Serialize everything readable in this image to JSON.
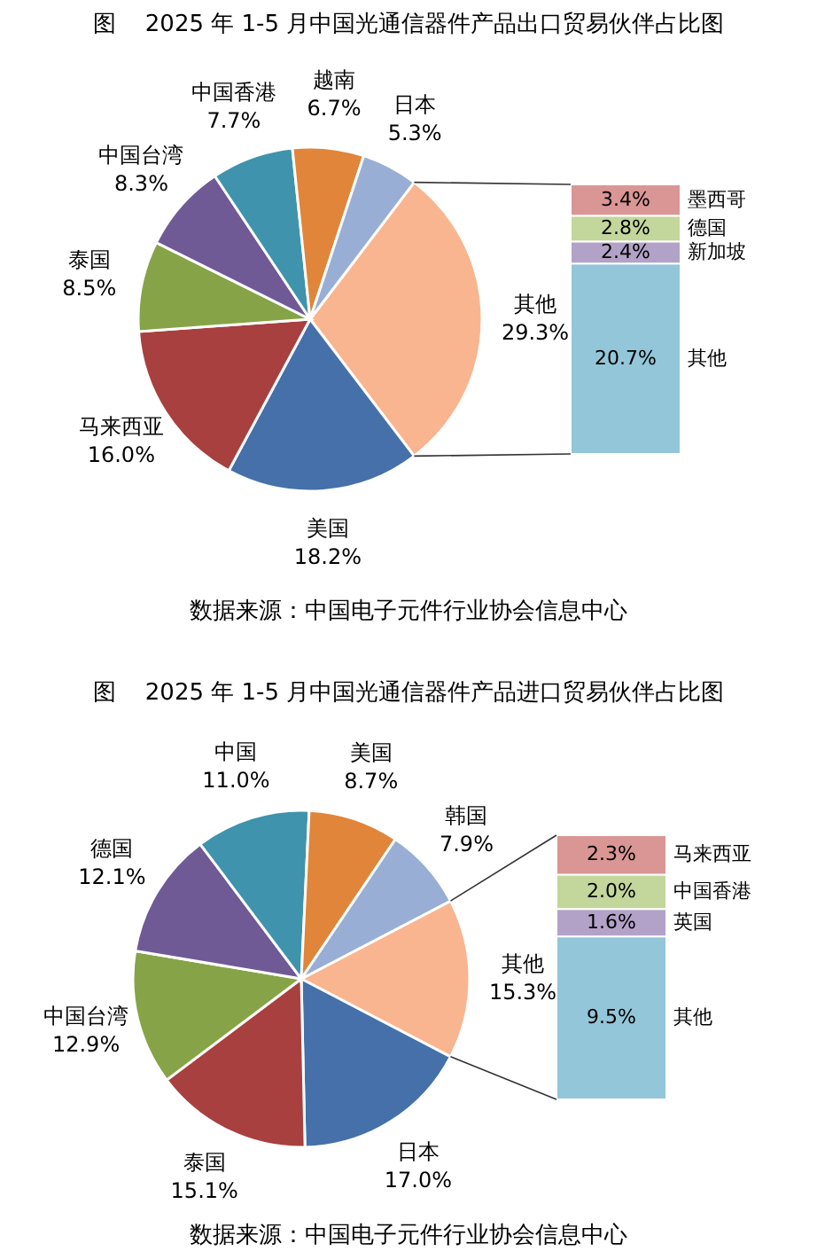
{
  "chart_data": [
    {
      "type": "pie",
      "title": "图    2025 年 1-5 月中国光通信器件产品出口贸易伙伴占比图",
      "annotations": [
        "数据来源：中国电子元件行业协会信息中心"
      ],
      "categories": [
        "其他",
        "美国",
        "马来西亚",
        "泰国",
        "中国台湾",
        "中国香港",
        "越南",
        "日本"
      ],
      "values": [
        29.3,
        18.2,
        16.0,
        8.5,
        8.3,
        7.7,
        6.7,
        5.3
      ],
      "value_labels": [
        "29.3%",
        "18.2%",
        "16.0%",
        "8.5%",
        "8.3%",
        "7.7%",
        "6.7%",
        "5.3%"
      ],
      "colors": [
        "#f9b58f",
        "#4570a9",
        "#a8403f",
        "#86a447",
        "#6f5a96",
        "#3f93ac",
        "#e0853a",
        "#98aed5"
      ]
    },
    {
      "type": "bar",
      "stacked": true,
      "categories": [
        null
      ],
      "series": [
        {
          "name": "其他",
          "color": "#93c6d8",
          "values": [
            20.7
          ],
          "value_labels": [
            "20.7%"
          ]
        },
        {
          "name": "新加坡",
          "color": "#b3a2c7",
          "values": [
            2.4
          ],
          "value_labels": [
            "2.4%"
          ]
        },
        {
          "name": "德国",
          "color": "#c3d69b",
          "values": [
            2.8
          ],
          "value_labels": [
            "2.8%"
          ]
        },
        {
          "name": "墨西哥",
          "color": "#d99694",
          "values": [
            3.4
          ],
          "value_labels": [
            "3.4%"
          ]
        }
      ]
    },
    {
      "type": "pie",
      "title": "图    2025 年 1-5 月中国光通信器件产品进口贸易伙伴占比图",
      "annotations": [
        "数据来源：中国电子元件行业协会信息中心"
      ],
      "categories": [
        "其他",
        "日本",
        "泰国",
        "中国台湾",
        "德国",
        "中国",
        "美国",
        "韩国"
      ],
      "values": [
        15.3,
        17.0,
        15.1,
        12.9,
        12.1,
        11.0,
        8.7,
        7.9
      ],
      "value_labels": [
        "15.3%",
        "17.0%",
        "15.1%",
        "12.9%",
        "12.1%",
        "11.0%",
        "8.7%",
        "7.9%"
      ],
      "colors": [
        "#f9b58f",
        "#4570a9",
        "#a8403f",
        "#86a447",
        "#6f5a96",
        "#3f93ac",
        "#e0853a",
        "#98aed5"
      ]
    },
    {
      "type": "bar",
      "stacked": true,
      "categories": [
        null
      ],
      "series": [
        {
          "name": "其他",
          "color": "#93c6d8",
          "values": [
            9.5
          ],
          "value_labels": [
            "9.5%"
          ]
        },
        {
          "name": "英国",
          "color": "#b3a2c7",
          "values": [
            1.6
          ],
          "value_labels": [
            "1.6%"
          ]
        },
        {
          "name": "中国香港",
          "color": "#c3d69b",
          "values": [
            2.0
          ],
          "value_labels": [
            "2.0%"
          ]
        },
        {
          "name": "马来西亚",
          "color": "#d99694",
          "values": [
            2.3
          ],
          "value_labels": [
            "2.3%"
          ]
        }
      ]
    }
  ]
}
